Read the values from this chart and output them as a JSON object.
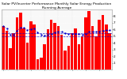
{
  "title": "Solar PV/Inverter Performance Monthly Solar Energy Production Running Average",
  "bar_values": [
    6.5,
    5.8,
    3.2,
    5.5,
    7.8,
    8.5,
    6.2,
    4.0,
    7.2,
    6.8,
    1.5,
    1.8,
    3.8,
    6.0,
    7.5,
    7.0,
    6.5,
    5.2,
    2.8,
    3.5,
    5.5,
    6.2,
    3.8,
    5.0,
    7.8,
    8.8,
    6.5,
    5.0,
    7.5,
    8.2,
    6.8,
    5.5
  ],
  "running_avg": [
    6.5,
    6.15,
    5.17,
    5.25,
    5.76,
    6.3,
    6.24,
    5.94,
    6.06,
    6.13,
    5.59,
    5.23,
    5.07,
    5.18,
    5.37,
    5.55,
    5.65,
    5.64,
    5.47,
    5.35,
    5.34,
    5.38,
    5.27,
    5.22,
    5.38,
    5.63,
    5.67,
    5.64,
    5.73,
    5.85,
    5.87,
    5.88
  ],
  "bar_color": "#ff0000",
  "avg_color": "#0000cc",
  "bg_color": "#ffffff",
  "plot_bg": "#f8f8f8",
  "grid_color": "#bbbbbb",
  "ylim": [
    0,
    9
  ],
  "ytick_vals": [
    1,
    2,
    3,
    4,
    5,
    6,
    7,
    8
  ],
  "title_fontsize": 3.2,
  "tick_fontsize": 3.0,
  "n_bars": 32,
  "bar_width": 0.82
}
